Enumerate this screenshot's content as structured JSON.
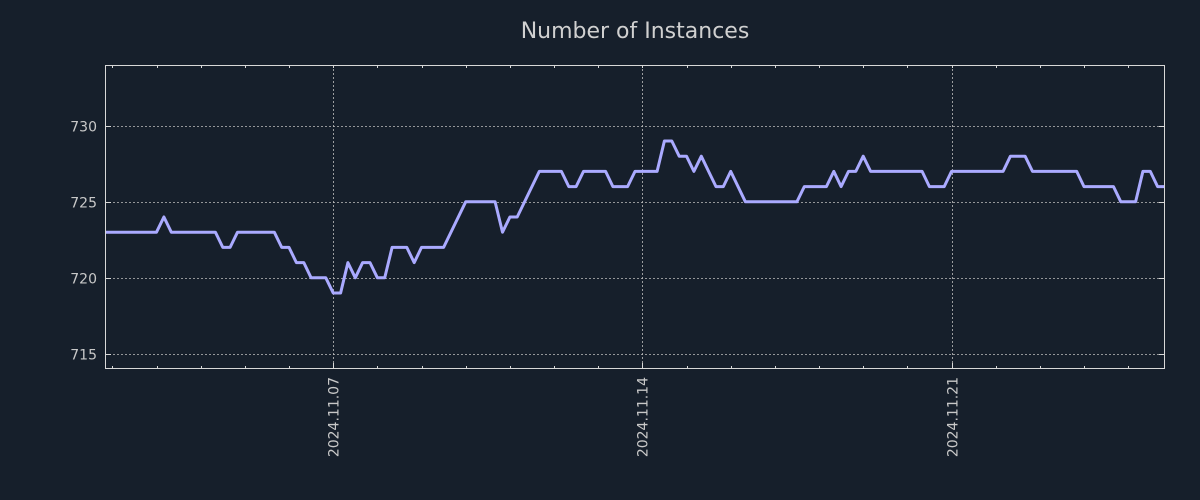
{
  "chart_data": {
    "type": "line",
    "title": "Number of Instances",
    "xlabel": "",
    "ylabel": "",
    "x_unit": "hours from 2024-11-07 00:00",
    "xlim": [
      -124,
      452
    ],
    "ylim": [
      714,
      734
    ],
    "yticks": [
      715,
      720,
      725,
      730
    ],
    "xticks": [
      {
        "label": "2024.11.07",
        "x": 0
      },
      {
        "label": "2024.11.14",
        "x": 168
      },
      {
        "label": "2024.11.21",
        "x": 336
      }
    ],
    "x_minor_step": 24,
    "grid": true,
    "series": [
      {
        "name": "Number of Instances",
        "color": "#aaaaff",
        "points": [
          [
            -124,
            723
          ],
          [
            -96,
            723
          ],
          [
            -92,
            724
          ],
          [
            -88,
            723
          ],
          [
            -64,
            723
          ],
          [
            -60,
            722
          ],
          [
            -56,
            722
          ],
          [
            -52,
            723
          ],
          [
            -32,
            723
          ],
          [
            -28,
            722
          ],
          [
            -24,
            722
          ],
          [
            -20,
            721
          ],
          [
            -16,
            721
          ],
          [
            -12,
            720
          ],
          [
            -4,
            720
          ],
          [
            0,
            719
          ],
          [
            4,
            719
          ],
          [
            8,
            721
          ],
          [
            12,
            720
          ],
          [
            16,
            721
          ],
          [
            20,
            721
          ],
          [
            24,
            720
          ],
          [
            28,
            720
          ],
          [
            32,
            722
          ],
          [
            40,
            722
          ],
          [
            44,
            721
          ],
          [
            48,
            722
          ],
          [
            60,
            722
          ],
          [
            72,
            725
          ],
          [
            88,
            725
          ],
          [
            92,
            723
          ],
          [
            96,
            724
          ],
          [
            100,
            724
          ],
          [
            112,
            727
          ],
          [
            124,
            727
          ],
          [
            128,
            726
          ],
          [
            132,
            726
          ],
          [
            136,
            727
          ],
          [
            148,
            727
          ],
          [
            152,
            726
          ],
          [
            160,
            726
          ],
          [
            164,
            727
          ],
          [
            176,
            727
          ],
          [
            180,
            729
          ],
          [
            184,
            729
          ],
          [
            188,
            728
          ],
          [
            192,
            728
          ],
          [
            196,
            727
          ],
          [
            200,
            728
          ],
          [
            204,
            727
          ],
          [
            208,
            726
          ],
          [
            212,
            726
          ],
          [
            216,
            727
          ],
          [
            224,
            725
          ],
          [
            252,
            725
          ],
          [
            256,
            726
          ],
          [
            268,
            726
          ],
          [
            272,
            727
          ],
          [
            276,
            726
          ],
          [
            280,
            727
          ],
          [
            284,
            727
          ],
          [
            288,
            728
          ],
          [
            292,
            727
          ],
          [
            320,
            727
          ],
          [
            324,
            726
          ],
          [
            332,
            726
          ],
          [
            336,
            727
          ],
          [
            364,
            727
          ],
          [
            368,
            728
          ],
          [
            376,
            728
          ],
          [
            380,
            727
          ],
          [
            404,
            727
          ],
          [
            408,
            726
          ],
          [
            424,
            726
          ],
          [
            428,
            725
          ],
          [
            436,
            725
          ],
          [
            440,
            727
          ],
          [
            444,
            727
          ],
          [
            448,
            726
          ],
          [
            452,
            726
          ]
        ]
      }
    ]
  }
}
